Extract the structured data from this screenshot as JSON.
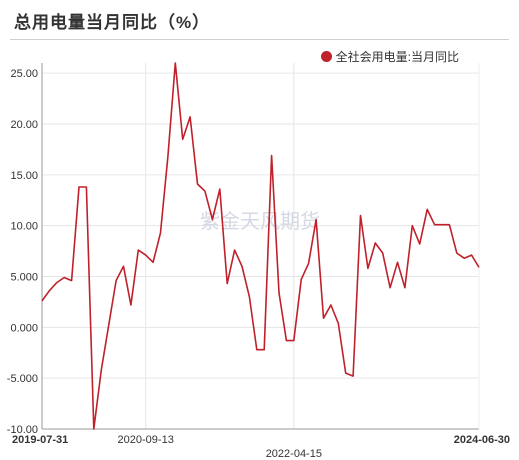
{
  "header": {
    "title": "总用电量当月同比（%）"
  },
  "colors": {
    "series": "#c0202a",
    "grid": "#e6e6e6",
    "axis": "#999999"
  },
  "watermark": "紫金天风期货",
  "chart_data": {
    "type": "line",
    "title": "总用电量当月同比（%）",
    "xlabel": "",
    "ylabel": "",
    "legend_position": "top-right",
    "grid": true,
    "ylim": [
      -10,
      26
    ],
    "y_ticks": [
      25,
      20,
      15,
      10,
      5,
      0,
      -5,
      -10
    ],
    "y_tick_labels": [
      "25.00",
      "20.00",
      "15.00",
      "10.00",
      "5.000",
      "0.000",
      "-5.000",
      "-10.00"
    ],
    "x_tick_labels": [
      {
        "label": "2019-07-31",
        "index": 0,
        "bold": true,
        "row": 1
      },
      {
        "label": "2020-09-13",
        "index": 14,
        "bold": false,
        "row": 1
      },
      {
        "label": "2022-04-15",
        "index": 34,
        "bold": false,
        "row": 2
      },
      {
        "label": "2024-06-30",
        "index": 59,
        "bold": true,
        "row": 1
      }
    ],
    "series": [
      {
        "name": "全社会用电量:当月同比",
        "values": [
          2.6,
          3.6,
          4.4,
          4.9,
          4.6,
          13.8,
          13.8,
          -10.0,
          -4.2,
          0.2,
          4.6,
          6.0,
          2.2,
          7.6,
          7.1,
          6.4,
          9.3,
          16.8,
          26.0,
          18.5,
          20.7,
          14.1,
          13.4,
          10.6,
          13.6,
          4.3,
          7.6,
          6.0,
          3.0,
          -2.2,
          -2.2,
          16.9,
          3.4,
          -1.3,
          -1.3,
          4.7,
          6.3,
          10.6,
          0.9,
          2.2,
          0.4,
          -4.5,
          -4.8,
          11.0,
          5.8,
          8.3,
          7.3,
          3.9,
          6.4,
          3.9,
          10.0,
          8.2,
          11.6,
          10.1,
          10.1,
          10.1,
          7.3,
          6.8,
          7.1,
          5.9
        ]
      }
    ]
  }
}
